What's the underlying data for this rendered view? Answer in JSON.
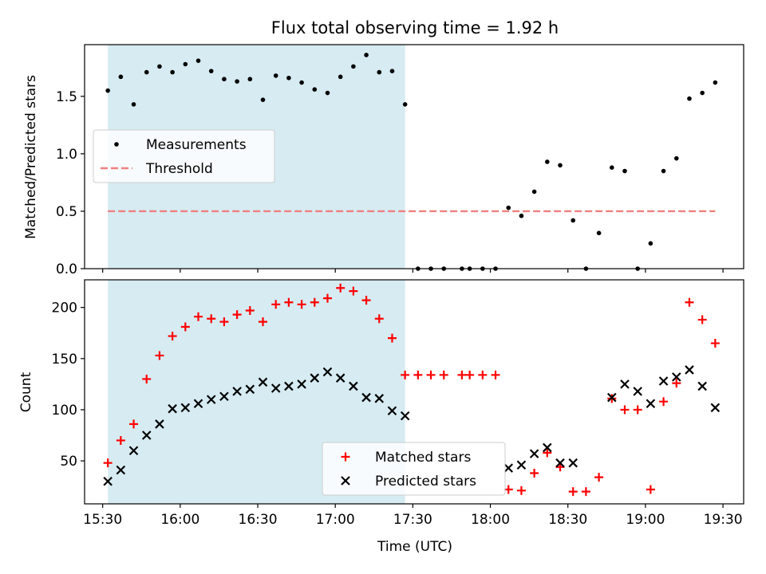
{
  "chart_data": [
    {
      "type": "scatter",
      "title": "Flux total observing time = 1.92 h",
      "xlabel": "",
      "ylabel": "Matched/Predicted stars",
      "xlim": [
        "15:23",
        "19:38"
      ],
      "ylim": [
        0,
        1.95
      ],
      "yticks": [
        0.0,
        0.5,
        1.0,
        1.5
      ],
      "ytick_labels": [
        "0.0",
        "0.5",
        "1.0",
        "1.5"
      ],
      "xticks": [
        "15:30",
        "16:00",
        "16:30",
        "17:00",
        "17:30",
        "18:00",
        "18:30",
        "19:00",
        "19:30"
      ],
      "xtick_labels_shown": false,
      "shaded_span": {
        "start": "15:32",
        "end": "17:27",
        "color": "#add8e6"
      },
      "legend_position": "center-left",
      "series": [
        {
          "name": "Measurements",
          "marker": "dot",
          "color": "#000000",
          "points": [
            [
              "15:32",
              1.55
            ],
            [
              "15:37",
              1.67
            ],
            [
              "15:42",
              1.43
            ],
            [
              "15:47",
              1.71
            ],
            [
              "15:52",
              1.76
            ],
            [
              "15:57",
              1.71
            ],
            [
              "16:02",
              1.78
            ],
            [
              "16:07",
              1.81
            ],
            [
              "16:12",
              1.72
            ],
            [
              "16:17",
              1.65
            ],
            [
              "16:22",
              1.63
            ],
            [
              "16:27",
              1.65
            ],
            [
              "16:32",
              1.47
            ],
            [
              "16:37",
              1.68
            ],
            [
              "16:42",
              1.66
            ],
            [
              "16:47",
              1.62
            ],
            [
              "16:52",
              1.56
            ],
            [
              "16:57",
              1.53
            ],
            [
              "17:02",
              1.67
            ],
            [
              "17:07",
              1.76
            ],
            [
              "17:12",
              1.86
            ],
            [
              "17:17",
              1.71
            ],
            [
              "17:22",
              1.72
            ],
            [
              "17:27",
              1.43
            ],
            [
              "17:32",
              0.0
            ],
            [
              "17:37",
              0.0
            ],
            [
              "17:42",
              0.0
            ],
            [
              "17:49",
              0.0
            ],
            [
              "17:52",
              0.0
            ],
            [
              "17:57",
              0.0
            ],
            [
              "18:02",
              0.0
            ],
            [
              "18:07",
              0.53
            ],
            [
              "18:12",
              0.46
            ],
            [
              "18:17",
              0.67
            ],
            [
              "18:22",
              0.93
            ],
            [
              "18:27",
              0.9
            ],
            [
              "18:32",
              0.42
            ],
            [
              "18:37",
              0.0
            ],
            [
              "18:42",
              0.31
            ],
            [
              "18:47",
              0.88
            ],
            [
              "18:52",
              0.85
            ],
            [
              "18:57",
              0.0
            ],
            [
              "19:02",
              0.22
            ],
            [
              "19:07",
              0.85
            ],
            [
              "19:12",
              0.96
            ],
            [
              "19:17",
              1.48
            ],
            [
              "19:22",
              1.53
            ],
            [
              "19:27",
              1.62
            ]
          ]
        },
        {
          "name": "Threshold",
          "style": "dashed",
          "color": "#f08080",
          "points": [
            [
              "15:32",
              0.5
            ],
            [
              "19:27",
              0.5
            ]
          ]
        }
      ]
    },
    {
      "type": "scatter",
      "title": "",
      "xlabel": "Time (UTC)",
      "ylabel": "Count",
      "xlim": [
        "15:23",
        "19:38"
      ],
      "ylim": [
        8,
        227
      ],
      "yticks": [
        50,
        100,
        150,
        200
      ],
      "ytick_labels": [
        "50",
        "100",
        "150",
        "200"
      ],
      "xticks": [
        "15:30",
        "16:00",
        "16:30",
        "17:00",
        "17:30",
        "18:00",
        "18:30",
        "19:00",
        "19:30"
      ],
      "xtick_labels": [
        "15:30",
        "16:00",
        "16:30",
        "17:00",
        "17:30",
        "18:00",
        "18:30",
        "19:00",
        "19:30"
      ],
      "shaded_span": {
        "start": "15:32",
        "end": "17:27",
        "color": "#add8e6"
      },
      "legend_position": "lower-center",
      "series": [
        {
          "name": "Matched stars",
          "marker": "plus",
          "color": "#ff0000",
          "points": [
            [
              "15:32",
              48
            ],
            [
              "15:37",
              70
            ],
            [
              "15:42",
              86
            ],
            [
              "15:47",
              130
            ],
            [
              "15:52",
              153
            ],
            [
              "15:57",
              172
            ],
            [
              "16:02",
              181
            ],
            [
              "16:07",
              191
            ],
            [
              "16:12",
              189
            ],
            [
              "16:17",
              186
            ],
            [
              "16:22",
              193
            ],
            [
              "16:27",
              197
            ],
            [
              "16:32",
              186
            ],
            [
              "16:37",
              203
            ],
            [
              "16:42",
              205
            ],
            [
              "16:47",
              203
            ],
            [
              "16:52",
              205
            ],
            [
              "16:57",
              209
            ],
            [
              "17:02",
              219
            ],
            [
              "17:07",
              216
            ],
            [
              "17:12",
              207
            ],
            [
              "17:17",
              189
            ],
            [
              "17:22",
              170
            ],
            [
              "17:27",
              134
            ],
            [
              "17:32",
              134
            ],
            [
              "17:37",
              134
            ],
            [
              "17:42",
              134
            ],
            [
              "17:49",
              134
            ],
            [
              "17:52",
              134
            ],
            [
              "17:57",
              134
            ],
            [
              "18:02",
              134
            ],
            [
              "18:07",
              22
            ],
            [
              "18:12",
              21
            ],
            [
              "18:17",
              38
            ],
            [
              "18:22",
              58
            ],
            [
              "18:27",
              44
            ],
            [
              "18:32",
              20
            ],
            [
              "18:37",
              20
            ],
            [
              "18:42",
              34
            ],
            [
              "18:47",
              111
            ],
            [
              "18:52",
              100
            ],
            [
              "18:57",
              100
            ],
            [
              "19:02",
              22
            ],
            [
              "19:07",
              108
            ],
            [
              "19:12",
              126
            ],
            [
              "19:17",
              205
            ],
            [
              "19:22",
              188
            ],
            [
              "19:27",
              165
            ]
          ]
        },
        {
          "name": "Predicted stars",
          "marker": "x",
          "color": "#000000",
          "points": [
            [
              "15:32",
              30
            ],
            [
              "15:37",
              41
            ],
            [
              "15:42",
              60
            ],
            [
              "15:47",
              75
            ],
            [
              "15:52",
              86
            ],
            [
              "15:57",
              101
            ],
            [
              "16:02",
              102
            ],
            [
              "16:07",
              106
            ],
            [
              "16:12",
              110
            ],
            [
              "16:17",
              113
            ],
            [
              "16:22",
              118
            ],
            [
              "16:27",
              120
            ],
            [
              "16:32",
              127
            ],
            [
              "16:37",
              121
            ],
            [
              "16:42",
              123
            ],
            [
              "16:47",
              125
            ],
            [
              "16:52",
              131
            ],
            [
              "16:57",
              137
            ],
            [
              "17:02",
              131
            ],
            [
              "17:07",
              123
            ],
            [
              "17:12",
              112
            ],
            [
              "17:17",
              111
            ],
            [
              "17:22",
              99
            ],
            [
              "17:27",
              94
            ],
            [
              "18:07",
              43
            ],
            [
              "18:12",
              46
            ],
            [
              "18:17",
              57
            ],
            [
              "18:22",
              63
            ],
            [
              "18:27",
              48
            ],
            [
              "18:32",
              48
            ],
            [
              "18:47",
              112
            ],
            [
              "18:52",
              125
            ],
            [
              "18:57",
              118
            ],
            [
              "19:02",
              106
            ],
            [
              "19:07",
              128
            ],
            [
              "19:12",
              132
            ],
            [
              "19:17",
              139
            ],
            [
              "19:22",
              123
            ],
            [
              "19:27",
              102
            ]
          ]
        }
      ]
    }
  ]
}
